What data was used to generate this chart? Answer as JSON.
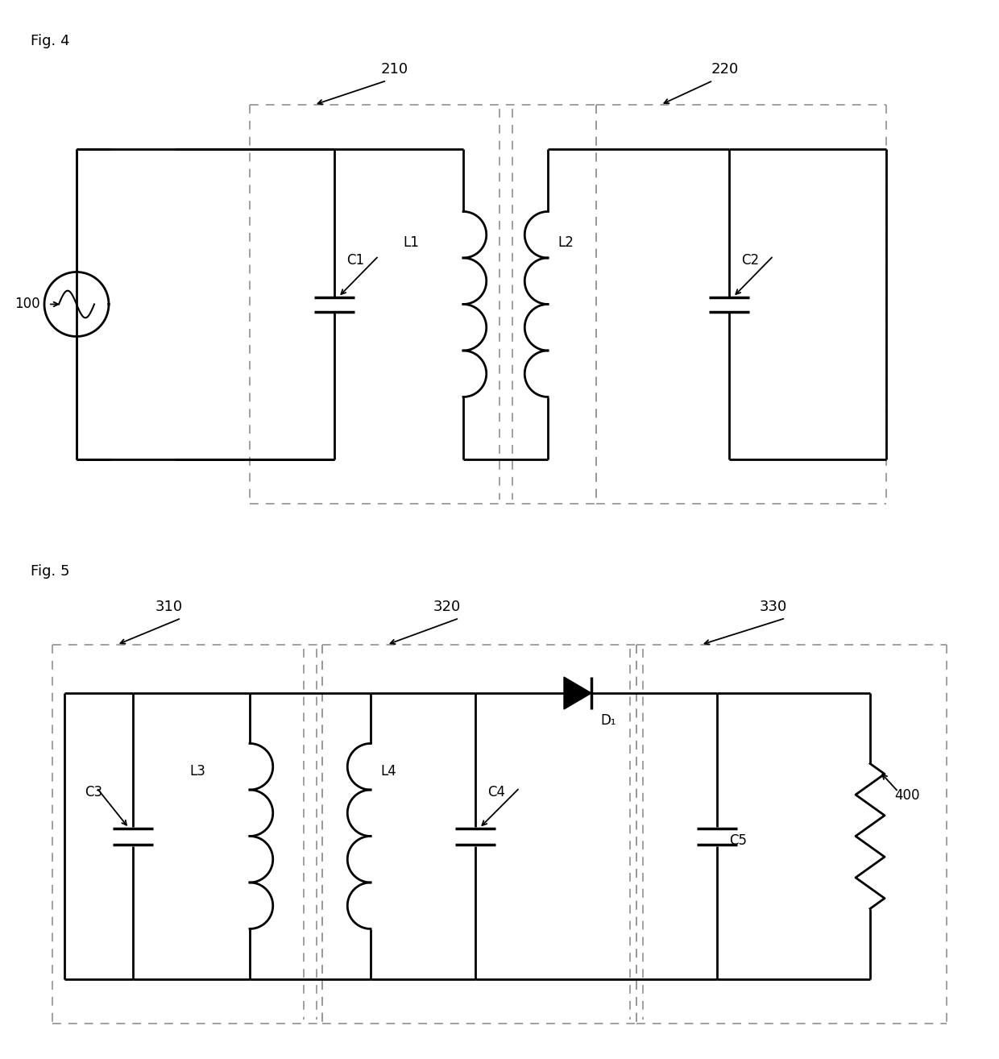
{
  "fig_width": 12.4,
  "fig_height": 13.14,
  "bg_color": "#ffffff",
  "line_color": "#000000",
  "dashed_color": "#999999",
  "fig4_label": "Fig. 4",
  "fig5_label": "Fig. 5",
  "label_100": "100",
  "label_210": "210",
  "label_220": "220",
  "label_C1": "C1",
  "label_C2": "C2",
  "label_L1": "L1",
  "label_L2": "L2",
  "label_310": "310",
  "label_320": "320",
  "label_330": "330",
  "label_C3": "C3",
  "label_C4": "C4",
  "label_C5": "C5",
  "label_L3": "L3",
  "label_L4": "L4",
  "label_D1": "D₁",
  "label_400": "400",
  "font_size_label": 13,
  "font_size_ref": 12,
  "lw_main": 2.0,
  "lw_dash": 1.3
}
